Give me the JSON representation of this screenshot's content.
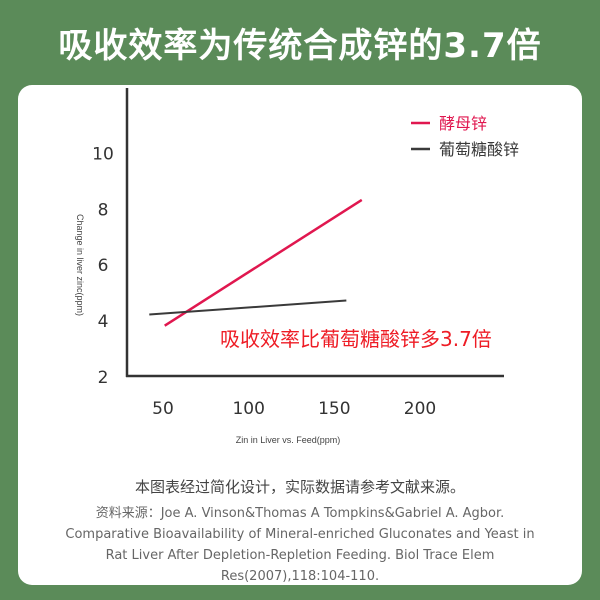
{
  "title": "吸收效率为传统合成锌的3.7倍",
  "chart_data": {
    "type": "line",
    "title": "",
    "xlabel": "Zin in Liver vs. Feed(ppm)",
    "ylabel": "Change in liver zinc(ppm)",
    "xlim": [
      29,
      249
    ],
    "ylim": [
      2,
      10.8
    ],
    "x_ticks": [
      50,
      100,
      150,
      200
    ],
    "y_ticks": [
      2,
      4,
      6,
      8,
      10
    ],
    "grid": false,
    "legend_position": "top-right",
    "series": [
      {
        "name": "酵母锌",
        "color": "#e0174f",
        "x": [
          51,
          166
        ],
        "y": [
          3.8,
          8.3
        ]
      },
      {
        "name": "葡萄糖酸锌",
        "color": "#3a3a3a",
        "x": [
          42,
          157
        ],
        "y": [
          4.2,
          4.7
        ]
      }
    ],
    "annotation": "吸收效率比葡萄糖酸锌多3.7倍",
    "annotation_color": "#ee1c25"
  },
  "note": "本图表经过简化设计，实际数据请参考文献来源。",
  "source": "资料来源：Joe A. Vinson&Thomas A Tompkins&Gabriel A. Agbor. Comparative Bioavailability of Mineral-enriched Gluconates and Yeast in Rat Liver After Depletion-Repletion Feeding. Biol Trace Elem Res(2007),118:104-110."
}
